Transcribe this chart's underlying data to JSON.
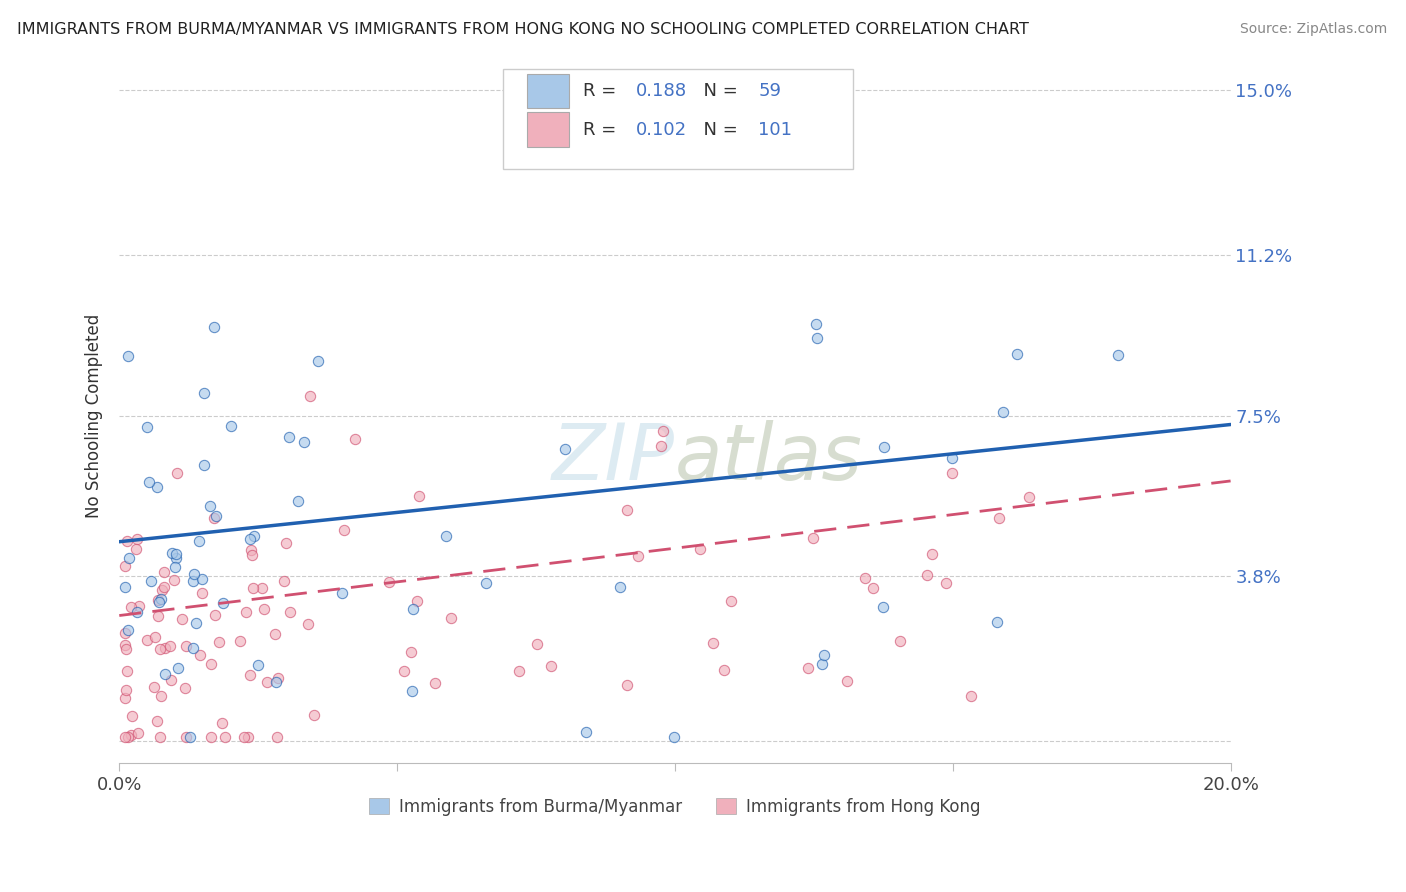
{
  "title": "IMMIGRANTS FROM BURMA/MYANMAR VS IMMIGRANTS FROM HONG KONG NO SCHOOLING COMPLETED CORRELATION CHART",
  "source": "Source: ZipAtlas.com",
  "legend_items": [
    {
      "label": "Immigrants from Burma/Myanmar",
      "R": "0.188",
      "N": "59",
      "color": "#a8c8e8",
      "line_color": "#2060b0"
    },
    {
      "label": "Immigrants from Hong Kong",
      "R": "0.102",
      "N": "101",
      "color": "#f0b0bc",
      "line_color": "#d05070"
    }
  ],
  "watermark": "ZIPatlas",
  "xlim": [
    0.0,
    0.2
  ],
  "ylim": [
    -0.005,
    0.155
  ],
  "ytick_vals": [
    0.0,
    0.038,
    0.075,
    0.112,
    0.15
  ],
  "ytick_labels": [
    "",
    "3.8%",
    "7.5%",
    "11.2%",
    "15.0%"
  ],
  "xtick_vals": [
    0.0,
    0.05,
    0.1,
    0.15,
    0.2
  ],
  "xtick_labels": [
    "0.0%",
    "",
    "",
    "",
    "20.0%"
  ],
  "blue_line_start_y": 0.046,
  "blue_line_end_y": 0.073,
  "pink_line_start_y": 0.029,
  "pink_line_end_y": 0.06,
  "scatter_alpha": 0.65,
  "scatter_size": 55,
  "title_fontsize": 11.5,
  "axis_label_fontsize": 12,
  "tick_fontsize": 13,
  "legend_fontsize": 13
}
